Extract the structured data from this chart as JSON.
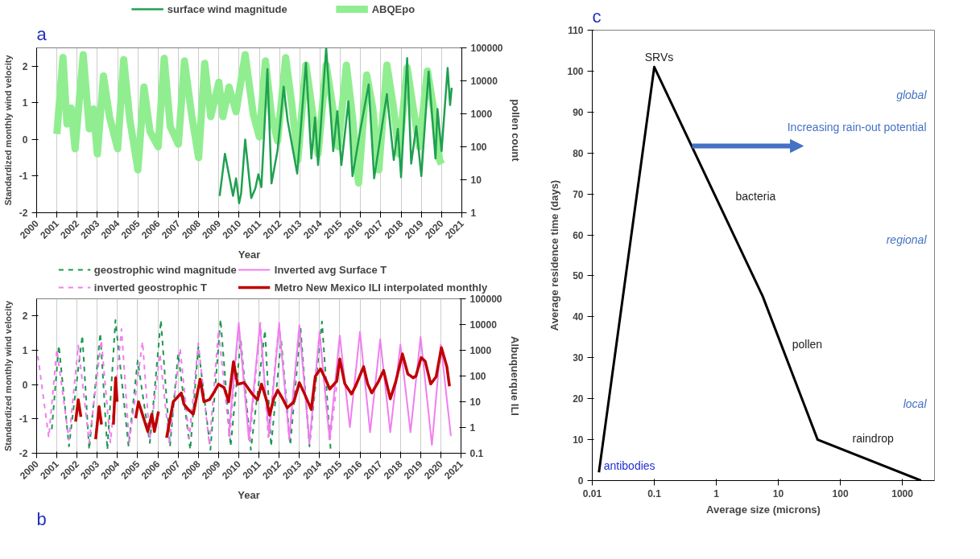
{
  "chart_data": [
    {
      "type": "line",
      "title": "a",
      "xlabel": "Year",
      "ylabel": "Standardized monthly wind velocity",
      "y2label": "pollen count",
      "xlim": [
        2000,
        2021
      ],
      "xticks": [
        2000,
        2001,
        2002,
        2003,
        2004,
        2005,
        2006,
        2007,
        2008,
        2009,
        2010,
        2011,
        2012,
        2013,
        2014,
        2015,
        2016,
        2017,
        2018,
        2019,
        2020,
        2021
      ],
      "ylim": [
        -2,
        2.5
      ],
      "yticks": [
        -2,
        -1,
        0,
        1,
        2
      ],
      "y2lim": [
        1,
        100000
      ],
      "y2ticks": [
        1,
        10,
        100,
        1000,
        10000,
        100000
      ],
      "log": "y2",
      "grid": "x",
      "legend": "top",
      "series": [
        {
          "name": "surface wind magnitude",
          "color": "#1fa050",
          "x": [
            2009.04,
            2009.3,
            2009.7,
            2009.85,
            2010.0,
            2010.1,
            2010.3,
            2010.6,
            2010.8,
            2010.95,
            2011.1,
            2011.4,
            2011.6,
            2011.9,
            2012.2,
            2012.4,
            2012.87,
            2013.3,
            2013.57,
            2013.75,
            2013.9,
            2014.3,
            2014.65,
            2014.85,
            2015.05,
            2015.4,
            2015.6,
            2016.0,
            2016.4,
            2016.67,
            2017.3,
            2017.64,
            2017.84,
            2018.0,
            2018.3,
            2018.5,
            2018.75,
            2019.0,
            2019.36,
            2019.7,
            2019.8,
            2020.0,
            2020.3,
            2020.42,
            2020.5
          ],
          "values": [
            -1.54,
            -0.39,
            -1.54,
            -1.06,
            -1.74,
            -1.47,
            0.0,
            -1.6,
            -1.34,
            -0.95,
            -1.3,
            1.92,
            -1.2,
            -0.3,
            1.44,
            0.5,
            -0.93,
            2.09,
            -0.52,
            0.6,
            -0.7,
            2.5,
            -0.32,
            0.77,
            -0.7,
            1.04,
            -1.0,
            0.3,
            1.5,
            -1.06,
            1.24,
            -0.56,
            0.29,
            -1.03,
            2.22,
            -0.66,
            0.36,
            -1.0,
            1.85,
            -0.52,
            0.83,
            -0.32,
            1.95,
            0.94,
            1.41
          ]
        },
        {
          "name": "ABQEpo",
          "color": "#90ee90",
          "axis": "y2",
          "x": [
            2001.0,
            2001.3,
            2001.5,
            2001.7,
            2001.9,
            2002.3,
            2002.6,
            2002.8,
            2003.0,
            2003.3,
            2003.6,
            2004.0,
            2004.3,
            2004.6,
            2005.0,
            2005.3,
            2005.6,
            2006.0,
            2006.3,
            2006.6,
            2007.0,
            2007.3,
            2007.65,
            2008.0,
            2008.3,
            2008.6,
            2009.0,
            2009.2,
            2009.5,
            2009.85,
            2010.3,
            2010.7,
            2011.0,
            2011.3,
            2011.6,
            2011.9,
            2012.3,
            2012.6,
            2012.9,
            2013.3,
            2013.6,
            2013.9,
            2014.3,
            2014.6,
            2014.9,
            2015.3,
            2015.6,
            2015.9,
            2016.3,
            2016.6,
            2016.9,
            2017.3,
            2017.6,
            2017.9,
            2018.3,
            2018.6,
            2018.9,
            2019.3,
            2019.6,
            2019.9,
            2020.0
          ],
          "values": [
            245,
            51000,
            490,
            1500,
            87,
            62000,
            350,
            1400,
            61,
            14000,
            820,
            87,
            44000,
            690,
            20,
            6500,
            290,
            100,
            48000,
            410,
            120,
            40000,
            980,
            47,
            34000,
            820,
            9100,
            820,
            6500,
            1150,
            62000,
            980,
            200,
            40000,
            900,
            150,
            50000,
            2000,
            40,
            30000,
            1500,
            60,
            30000,
            2000,
            100,
            30000,
            800,
            8,
            15000,
            1500,
            20,
            30000,
            2000,
            60,
            25000,
            1500,
            100,
            20000,
            1500,
            40,
            30
          ]
        }
      ]
    },
    {
      "type": "line",
      "title": "b",
      "xlabel": "Year",
      "ylabel": "Standardized monthly wind velocity",
      "y2label": "Albuquerque ILI",
      "xlim": [
        2000,
        2021
      ],
      "xticks": [
        2000,
        2001,
        2002,
        2003,
        2004,
        2005,
        2006,
        2007,
        2008,
        2009,
        2010,
        2011,
        2012,
        2013,
        2014,
        2015,
        2016,
        2017,
        2018,
        2019,
        2020,
        2021
      ],
      "ylim": [
        -2,
        2.5
      ],
      "yticks": [
        -2,
        -1,
        0,
        1,
        2
      ],
      "y2lim": [
        0.1,
        100000
      ],
      "y2ticks": [
        0.1,
        1,
        10,
        100,
        1000,
        10000,
        100000
      ],
      "log": "y2",
      "grid": "x",
      "legend": "top",
      "series": [
        {
          "name": "geostrophic wind magnitude",
          "color": "#1a9850",
          "line_style": "dashed",
          "x": [
            2000.75,
            2001.1,
            2001.6,
            2002.26,
            2002.6,
            2003.15,
            2003.5,
            2003.9,
            2004.55,
            2005.0,
            2005.6,
            2006.15,
            2006.6,
            2007.0,
            2007.6,
            2008.0,
            2008.6,
            2009.1,
            2009.6,
            2010.1,
            2010.6,
            2011.3,
            2011.6,
            2012.1,
            2012.55,
            2013.06,
            2013.5,
            2014.12,
            2014.55
          ],
          "values": [
            -1.3,
            1.14,
            -1.8,
            1.43,
            -1.9,
            1.5,
            -1.9,
            1.88,
            -1.8,
            0.7,
            -1.7,
            1.88,
            -1.8,
            0.9,
            -1.9,
            1.1,
            -1.9,
            1.9,
            -1.8,
            1.3,
            -1.9,
            1.58,
            -1.8,
            1.3,
            -1.76,
            1.65,
            -1.8,
            1.84,
            -1.9
          ]
        },
        {
          "name": "inverted geostrophic T",
          "color": "#f07ef0",
          "line_style": "dashed",
          "x": [
            2000.0,
            2000.07,
            2000.6,
            2001.0,
            2001.6,
            2002.06,
            2002.6,
            2003.2,
            2003.65,
            2004.2,
            2004.58,
            2005.24,
            2005.6,
            2006.1,
            2006.56,
            2007.1,
            2007.55,
            2008.0,
            2008.55,
            2009.0,
            2009.55,
            2010.0,
            2010.54,
            2011.07,
            2011.46,
            2012.0,
            2012.5,
            2013.0,
            2013.5,
            2014.0,
            2014.5,
            2014.9
          ],
          "values": [
            0.8,
            0.8,
            -1.54,
            1.03,
            -1.61,
            1.14,
            -1.69,
            1.29,
            -1.69,
            1.62,
            -1.69,
            1.25,
            -1.61,
            0.9,
            -1.69,
            1.06,
            -1.58,
            1.21,
            -1.76,
            1.58,
            -1.54,
            1.73,
            -1.69,
            1.8,
            -1.53,
            1.8,
            -1.6,
            1.73,
            -1.75,
            1.54,
            -1.68,
            0.2
          ]
        },
        {
          "name": "Inverted avg Surface T",
          "color": "#f07ef0",
          "line_style": "solid",
          "x": [
            2009.5,
            2010.0,
            2010.5,
            2011.05,
            2011.5,
            2012.0,
            2012.5,
            2013.0,
            2013.5,
            2014.0,
            2014.5,
            2015.0,
            2015.5,
            2016.0,
            2016.5,
            2017.0,
            2017.5,
            2018.0,
            2018.5,
            2019.0,
            2019.56,
            2020.0,
            2020.5
          ],
          "values": [
            -1.5,
            1.8,
            -1.6,
            1.75,
            -1.5,
            1.75,
            -1.55,
            1.7,
            -1.7,
            1.5,
            -1.6,
            1.43,
            -1.24,
            1.54,
            -1.39,
            1.32,
            -1.39,
            1.17,
            -1.39,
            1.39,
            -1.76,
            1.17,
            -1.5
          ]
        },
        {
          "name": "Metro New Mexico ILI interpolated monthly",
          "color": "#c00000",
          "axis": "y2",
          "line_style": "solid",
          "x": [
            2001.93,
            2002.06,
            2002.19,
            2002.5,
            2002.92,
            2003.09,
            2003.21,
            2003.5,
            2003.8,
            2003.91,
            2003.98,
            2004.5,
            2004.9,
            2005.04,
            2005.5,
            2005.7,
            2005.83,
            2006.03,
            2006.2,
            2006.43,
            2006.76,
            2007.16,
            2007.29,
            2007.5,
            2007.75,
            2008.09,
            2008.28,
            2008.55,
            2008.8,
            2009.0,
            2009.28,
            2009.5,
            2009.74,
            2009.94,
            2010.27,
            2010.67,
            2010.93,
            2011.13,
            2011.4,
            2011.53,
            2011.73,
            2011.93,
            2012.2,
            2012.4,
            2012.73,
            2013.0,
            2013.26,
            2013.59,
            2013.79,
            2014.05,
            2014.3,
            2014.5,
            2014.85,
            2015.0,
            2015.25,
            2015.58,
            2015.78,
            2016.18,
            2016.38,
            2016.58,
            2016.91,
            2017.17,
            2017.5,
            2017.77,
            2018.1,
            2018.37,
            2018.64,
            2018.77,
            2019.03,
            2019.23,
            2019.5,
            2019.77,
            2020.03,
            2020.3,
            2020.43
          ],
          "values": [
            1.7,
            12,
            2.6,
            null,
            0.35,
            6.5,
            1.3,
            null,
            1.3,
            85,
            10,
            null,
            2.3,
            10,
            0.7,
            3.3,
            0.7,
            4.2,
            null,
            0.4,
            10,
            22,
            8,
            5,
            3.3,
            75,
            10,
            12,
            25,
            48,
            35,
            10,
            360,
            48,
            55,
            20,
            12,
            49,
            10,
            3,
            13,
            28,
            12,
            5.8,
            10,
            55,
            20,
            5,
            96,
            190,
            75,
            31,
            63,
            460,
            50,
            20,
            40,
            230,
            50,
            22,
            60,
            165,
            13,
            60,
            720,
            120,
            85,
            100,
            520,
            370,
            49,
            95,
            1260,
            230,
            40
          ]
        }
      ]
    },
    {
      "type": "line",
      "title": "c",
      "xlabel": "Average size (microns)",
      "ylabel": "Average residence time (days)",
      "xlim": [
        0.01,
        3300
      ],
      "xticks": [
        0.01,
        0.1,
        1,
        10,
        100,
        1000
      ],
      "ylim": [
        0,
        110
      ],
      "yticks": [
        0,
        10,
        20,
        30,
        40,
        50,
        60,
        70,
        80,
        90,
        100,
        110
      ],
      "log": "x",
      "grid": false,
      "series": [
        {
          "color": "#000000",
          "x": [
            0.0128,
            0.1,
            5.6,
            43,
            2000
          ],
          "values": [
            2,
            101,
            45,
            10,
            0
          ]
        }
      ],
      "annotations": [
        {
          "text": "SRVs",
          "x": 0.1,
          "y": 101
        },
        {
          "text": "antibodies",
          "x": 0.0128,
          "y": 2
        },
        "bacteria",
        {
          "text": "pollen",
          "x": 14,
          "y": 31
        },
        "raindrop",
        "Increasing rain-out potential",
        "global",
        "regional",
        "local"
      ]
    }
  ]
}
